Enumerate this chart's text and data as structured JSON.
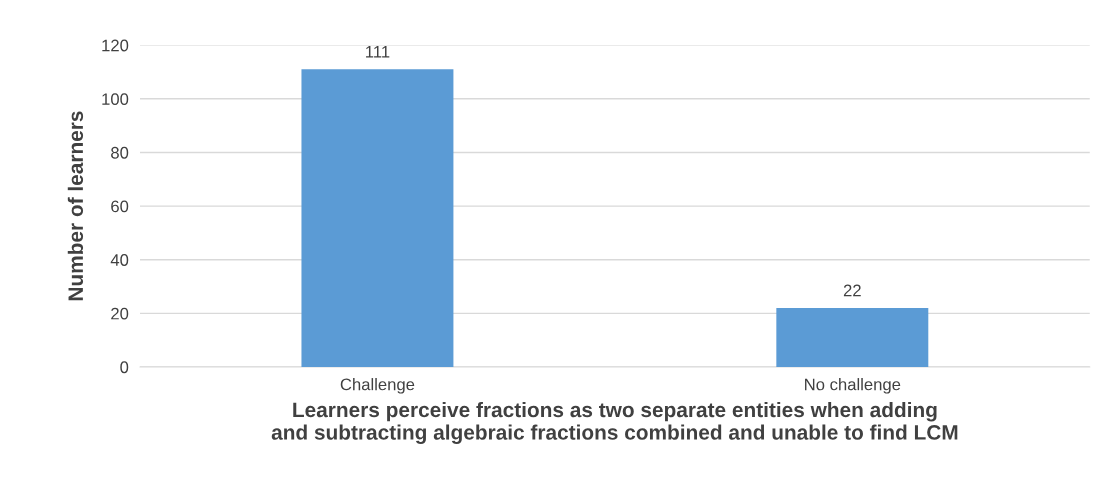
{
  "chart_data": {
    "type": "bar",
    "categories": [
      "Challenge",
      "No challenge"
    ],
    "values": [
      111,
      22
    ],
    "color": "#5b9bd5",
    "data_labels": true,
    "xlabel": "Learners perceive fractions as two separate entities when adding\nand subtracting algebraic fractions combined and unable to find LCM",
    "ylabel": "Number of learners",
    "ylim": [
      0,
      120
    ],
    "yticks": [
      0,
      20,
      40,
      60,
      80,
      100,
      120
    ],
    "grid": "y"
  }
}
